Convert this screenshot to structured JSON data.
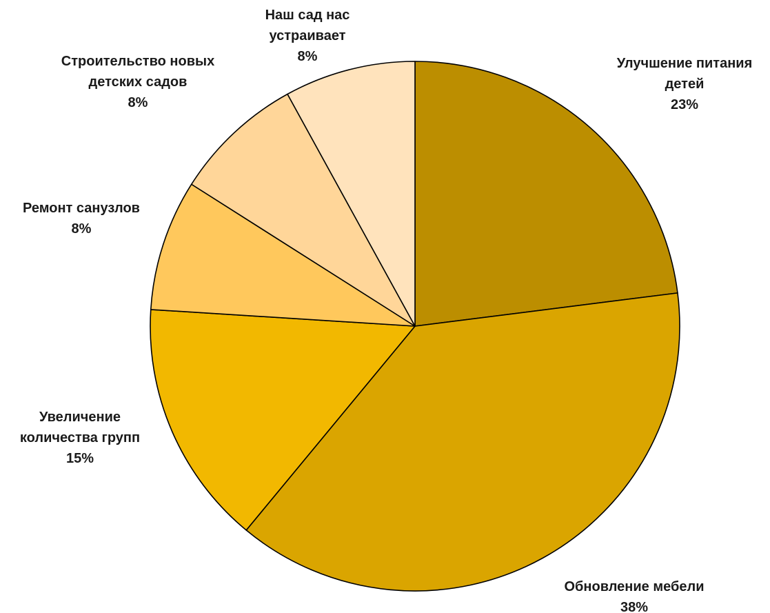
{
  "chart_data": {
    "type": "pie",
    "title": "",
    "legend": "none",
    "slices": [
      {
        "label": "Улучшение питания детей",
        "label_lines": [
          "Улучшение питания",
          "детей"
        ],
        "value": 23,
        "value_label": "23%",
        "color": "#BC8E00"
      },
      {
        "label": "Обновление мебели",
        "label_lines": [
          "Обновление мебели"
        ],
        "value": 38,
        "value_label": "38%",
        "color": "#DAA500"
      },
      {
        "label": "Увеличение количества групп",
        "label_lines": [
          "Увеличение",
          "количества групп"
        ],
        "value": 15,
        "value_label": "15%",
        "color": "#F2B800"
      },
      {
        "label": "Ремонт санузлов",
        "label_lines": [
          "Ремонт санузлов"
        ],
        "value": 8,
        "value_label": "8%",
        "color": "#FFC85C"
      },
      {
        "label": "Строительство новых детских садов",
        "label_lines": [
          "Строительство новых",
          "детских садов"
        ],
        "value": 8,
        "value_label": "8%",
        "color": "#FFD699"
      },
      {
        "label": "Наш сад нас устраивает",
        "label_lines": [
          "Наш сад нас",
          "устраивает"
        ],
        "value": 8,
        "value_label": "8%",
        "color": "#FFE3BC"
      }
    ]
  }
}
